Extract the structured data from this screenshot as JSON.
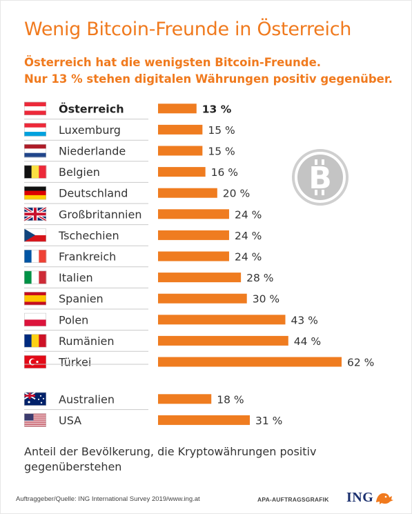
{
  "header": {
    "title": "Wenig Bitcoin-Freunde in Österreich",
    "subtitle_line1": "Österreich hat die wenigsten Bitcoin-Freunde.",
    "subtitle_line2": "Nur 13 % stehen digitalen Währungen positiv gegenüber."
  },
  "chart_data": {
    "type": "bar",
    "orientation": "horizontal",
    "unit": "%",
    "xlim": [
      0,
      62
    ],
    "grid": false,
    "groups": [
      {
        "categories": [
          "Österreich",
          "Luxemburg",
          "Niederlande",
          "Belgien",
          "Deutschland",
          "Großbritannien",
          "Tschechien",
          "Frankreich",
          "Italien",
          "Spanien",
          "Polen",
          "Rumänien",
          "Türkei"
        ],
        "values": [
          13,
          15,
          15,
          16,
          20,
          24,
          24,
          24,
          28,
          30,
          43,
          44,
          62
        ],
        "labels": [
          "13 %",
          "15 %",
          "15 %",
          "16 %",
          "20 %",
          "24 %",
          "24 %",
          "24 %",
          "28 %",
          "30 %",
          "43 %",
          "44 %",
          "62 %"
        ],
        "highlighted": "Österreich"
      },
      {
        "categories": [
          "Australien",
          "USA"
        ],
        "values": [
          18,
          31
        ],
        "labels": [
          "18 %",
          "31 %"
        ]
      }
    ],
    "bar_color": "#ef7c20"
  },
  "flags": [
    "flag-austria-icon",
    "flag-luxembourg-icon",
    "flag-netherlands-icon",
    "flag-belgium-icon",
    "flag-germany-icon",
    "flag-uk-icon",
    "flag-czechia-icon",
    "flag-france-icon",
    "flag-italy-icon",
    "flag-spain-icon",
    "flag-poland-icon",
    "flag-romania-icon",
    "flag-turkey-icon",
    "flag-australia-icon",
    "flag-usa-icon"
  ],
  "decoration": {
    "icon": "bitcoin-icon"
  },
  "footer": {
    "caption": "Anteil der Bevölkerung, die Kryptowährungen positiv gegenüberstehen",
    "source": "Auftraggeber/Quelle: ING International Survey 2019/www.ing.at",
    "agency": "APA-AUFTRAGSGRAFIK",
    "brand": "ING",
    "brand_icon": "ing-lion-icon"
  }
}
